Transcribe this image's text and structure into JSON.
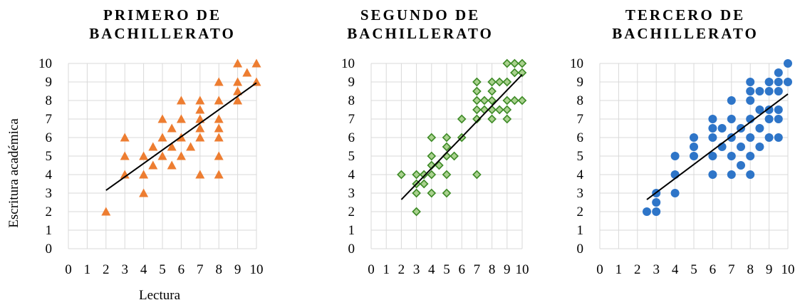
{
  "chart_data": [
    {
      "type": "scatter",
      "title_lines": [
        "PRIMERO DE",
        "BACHILLERATO"
      ],
      "xlabel": "Lectura",
      "ylabel": "Escritura académica",
      "xlim": [
        0,
        10
      ],
      "ylim": [
        0,
        10
      ],
      "x_ticks": [
        0,
        1,
        2,
        3,
        4,
        5,
        6,
        7,
        8,
        9,
        10
      ],
      "y_ticks": [
        0,
        1,
        2,
        3,
        4,
        5,
        6,
        7,
        8,
        9,
        10
      ],
      "grid": true,
      "marker": "triangle",
      "color": "#ed7d31",
      "trendline": {
        "x": [
          2,
          10
        ],
        "y": [
          3.15,
          8.95
        ]
      },
      "points": [
        [
          2,
          2
        ],
        [
          3,
          6
        ],
        [
          3,
          5
        ],
        [
          3,
          4
        ],
        [
          4,
          5
        ],
        [
          4,
          4
        ],
        [
          4,
          3
        ],
        [
          4.5,
          5.5
        ],
        [
          4.5,
          4.5
        ],
        [
          5,
          7
        ],
        [
          5,
          6
        ],
        [
          5,
          5
        ],
        [
          5.5,
          6.5
        ],
        [
          5.5,
          5.5
        ],
        [
          5.5,
          4.5
        ],
        [
          6,
          8
        ],
        [
          6,
          7
        ],
        [
          6,
          6
        ],
        [
          6,
          5
        ],
        [
          6.5,
          5.5
        ],
        [
          7,
          8
        ],
        [
          7,
          7.5
        ],
        [
          7,
          7
        ],
        [
          7,
          6.5
        ],
        [
          7,
          6
        ],
        [
          7,
          4
        ],
        [
          8,
          9
        ],
        [
          8,
          8
        ],
        [
          8,
          7
        ],
        [
          8,
          6.5
        ],
        [
          8,
          6
        ],
        [
          8,
          5
        ],
        [
          8,
          4
        ],
        [
          9,
          10
        ],
        [
          9,
          9
        ],
        [
          9,
          8.5
        ],
        [
          9,
          8
        ],
        [
          9.5,
          9.5
        ],
        [
          10,
          10
        ],
        [
          10,
          9
        ]
      ]
    },
    {
      "type": "scatter",
      "title_lines": [
        "SEGUNDO DE",
        "BACHILLERATO"
      ],
      "xlim": [
        0,
        10
      ],
      "ylim": [
        0,
        10
      ],
      "x_ticks": [
        0,
        1,
        2,
        3,
        4,
        5,
        6,
        7,
        8,
        9,
        10
      ],
      "y_ticks": [
        0,
        1,
        2,
        3,
        4,
        5,
        6,
        7,
        8,
        9,
        10
      ],
      "grid": true,
      "marker": "diamond",
      "color": "#70ad47",
      "trendline": {
        "x": [
          2,
          10
        ],
        "y": [
          2.65,
          9.4
        ]
      },
      "points": [
        [
          2,
          4
        ],
        [
          3,
          4
        ],
        [
          3,
          3.5
        ],
        [
          3,
          3
        ],
        [
          3,
          2
        ],
        [
          3.5,
          4
        ],
        [
          3.5,
          3.5
        ],
        [
          4,
          6
        ],
        [
          4,
          5
        ],
        [
          4,
          4.5
        ],
        [
          4,
          4
        ],
        [
          4,
          3
        ],
        [
          4.5,
          4.5
        ],
        [
          5,
          6
        ],
        [
          5,
          5.5
        ],
        [
          5,
          5
        ],
        [
          5,
          4
        ],
        [
          5,
          3
        ],
        [
          5.5,
          5
        ],
        [
          6,
          7
        ],
        [
          6,
          6
        ],
        [
          7,
          9
        ],
        [
          7,
          8.5
        ],
        [
          7,
          8
        ],
        [
          7,
          7.5
        ],
        [
          7,
          7
        ],
        [
          7,
          4
        ],
        [
          7.5,
          8
        ],
        [
          7.5,
          7.5
        ],
        [
          8,
          9
        ],
        [
          8,
          8.5
        ],
        [
          8,
          8
        ],
        [
          8,
          7.5
        ],
        [
          8,
          7
        ],
        [
          8.5,
          9
        ],
        [
          8.5,
          7.5
        ],
        [
          9,
          10
        ],
        [
          9,
          9
        ],
        [
          9,
          8
        ],
        [
          9,
          7.5
        ],
        [
          9,
          7
        ],
        [
          9.5,
          10
        ],
        [
          9.5,
          9.5
        ],
        [
          9.5,
          8
        ],
        [
          10,
          10
        ],
        [
          10,
          9.5
        ],
        [
          10,
          8
        ]
      ]
    },
    {
      "type": "scatter",
      "title_lines": [
        "TERCERO DE",
        "BACHILLERATO"
      ],
      "xlim": [
        0,
        10
      ],
      "ylim": [
        0,
        10
      ],
      "x_ticks": [
        0,
        1,
        2,
        3,
        4,
        5,
        6,
        7,
        8,
        9,
        10
      ],
      "y_ticks": [
        0,
        1,
        2,
        3,
        4,
        5,
        6,
        7,
        8,
        9,
        10
      ],
      "grid": true,
      "marker": "circle",
      "color": "#2e75c8",
      "trendline": {
        "x": [
          2.5,
          10
        ],
        "y": [
          2.65,
          8.35
        ]
      },
      "points": [
        [
          2.5,
          2
        ],
        [
          3,
          3
        ],
        [
          3,
          2.5
        ],
        [
          3,
          2
        ],
        [
          4,
          5
        ],
        [
          4,
          4
        ],
        [
          4,
          3
        ],
        [
          5,
          6
        ],
        [
          5,
          5.5
        ],
        [
          5,
          5
        ],
        [
          6,
          7
        ],
        [
          6,
          6.5
        ],
        [
          6,
          6
        ],
        [
          6,
          5
        ],
        [
          6,
          4
        ],
        [
          6.5,
          6.5
        ],
        [
          6.5,
          5.5
        ],
        [
          7,
          8
        ],
        [
          7,
          7
        ],
        [
          7,
          6
        ],
        [
          7,
          5
        ],
        [
          7,
          4
        ],
        [
          7.5,
          6.5
        ],
        [
          7.5,
          5.5
        ],
        [
          7.5,
          4.5
        ],
        [
          8,
          9
        ],
        [
          8,
          8.5
        ],
        [
          8,
          8
        ],
        [
          8,
          7
        ],
        [
          8,
          6
        ],
        [
          8,
          5
        ],
        [
          8,
          4
        ],
        [
          8.5,
          8.5
        ],
        [
          8.5,
          7.5
        ],
        [
          8.5,
          6.5
        ],
        [
          8.5,
          5.5
        ],
        [
          9,
          9
        ],
        [
          9,
          8.5
        ],
        [
          9,
          7.5
        ],
        [
          9,
          7
        ],
        [
          9,
          6
        ],
        [
          9.5,
          9.5
        ],
        [
          9.5,
          9
        ],
        [
          9.5,
          8.5
        ],
        [
          9.5,
          7.5
        ],
        [
          9.5,
          7
        ],
        [
          9.5,
          6
        ],
        [
          10,
          10
        ],
        [
          10,
          9
        ]
      ]
    }
  ]
}
